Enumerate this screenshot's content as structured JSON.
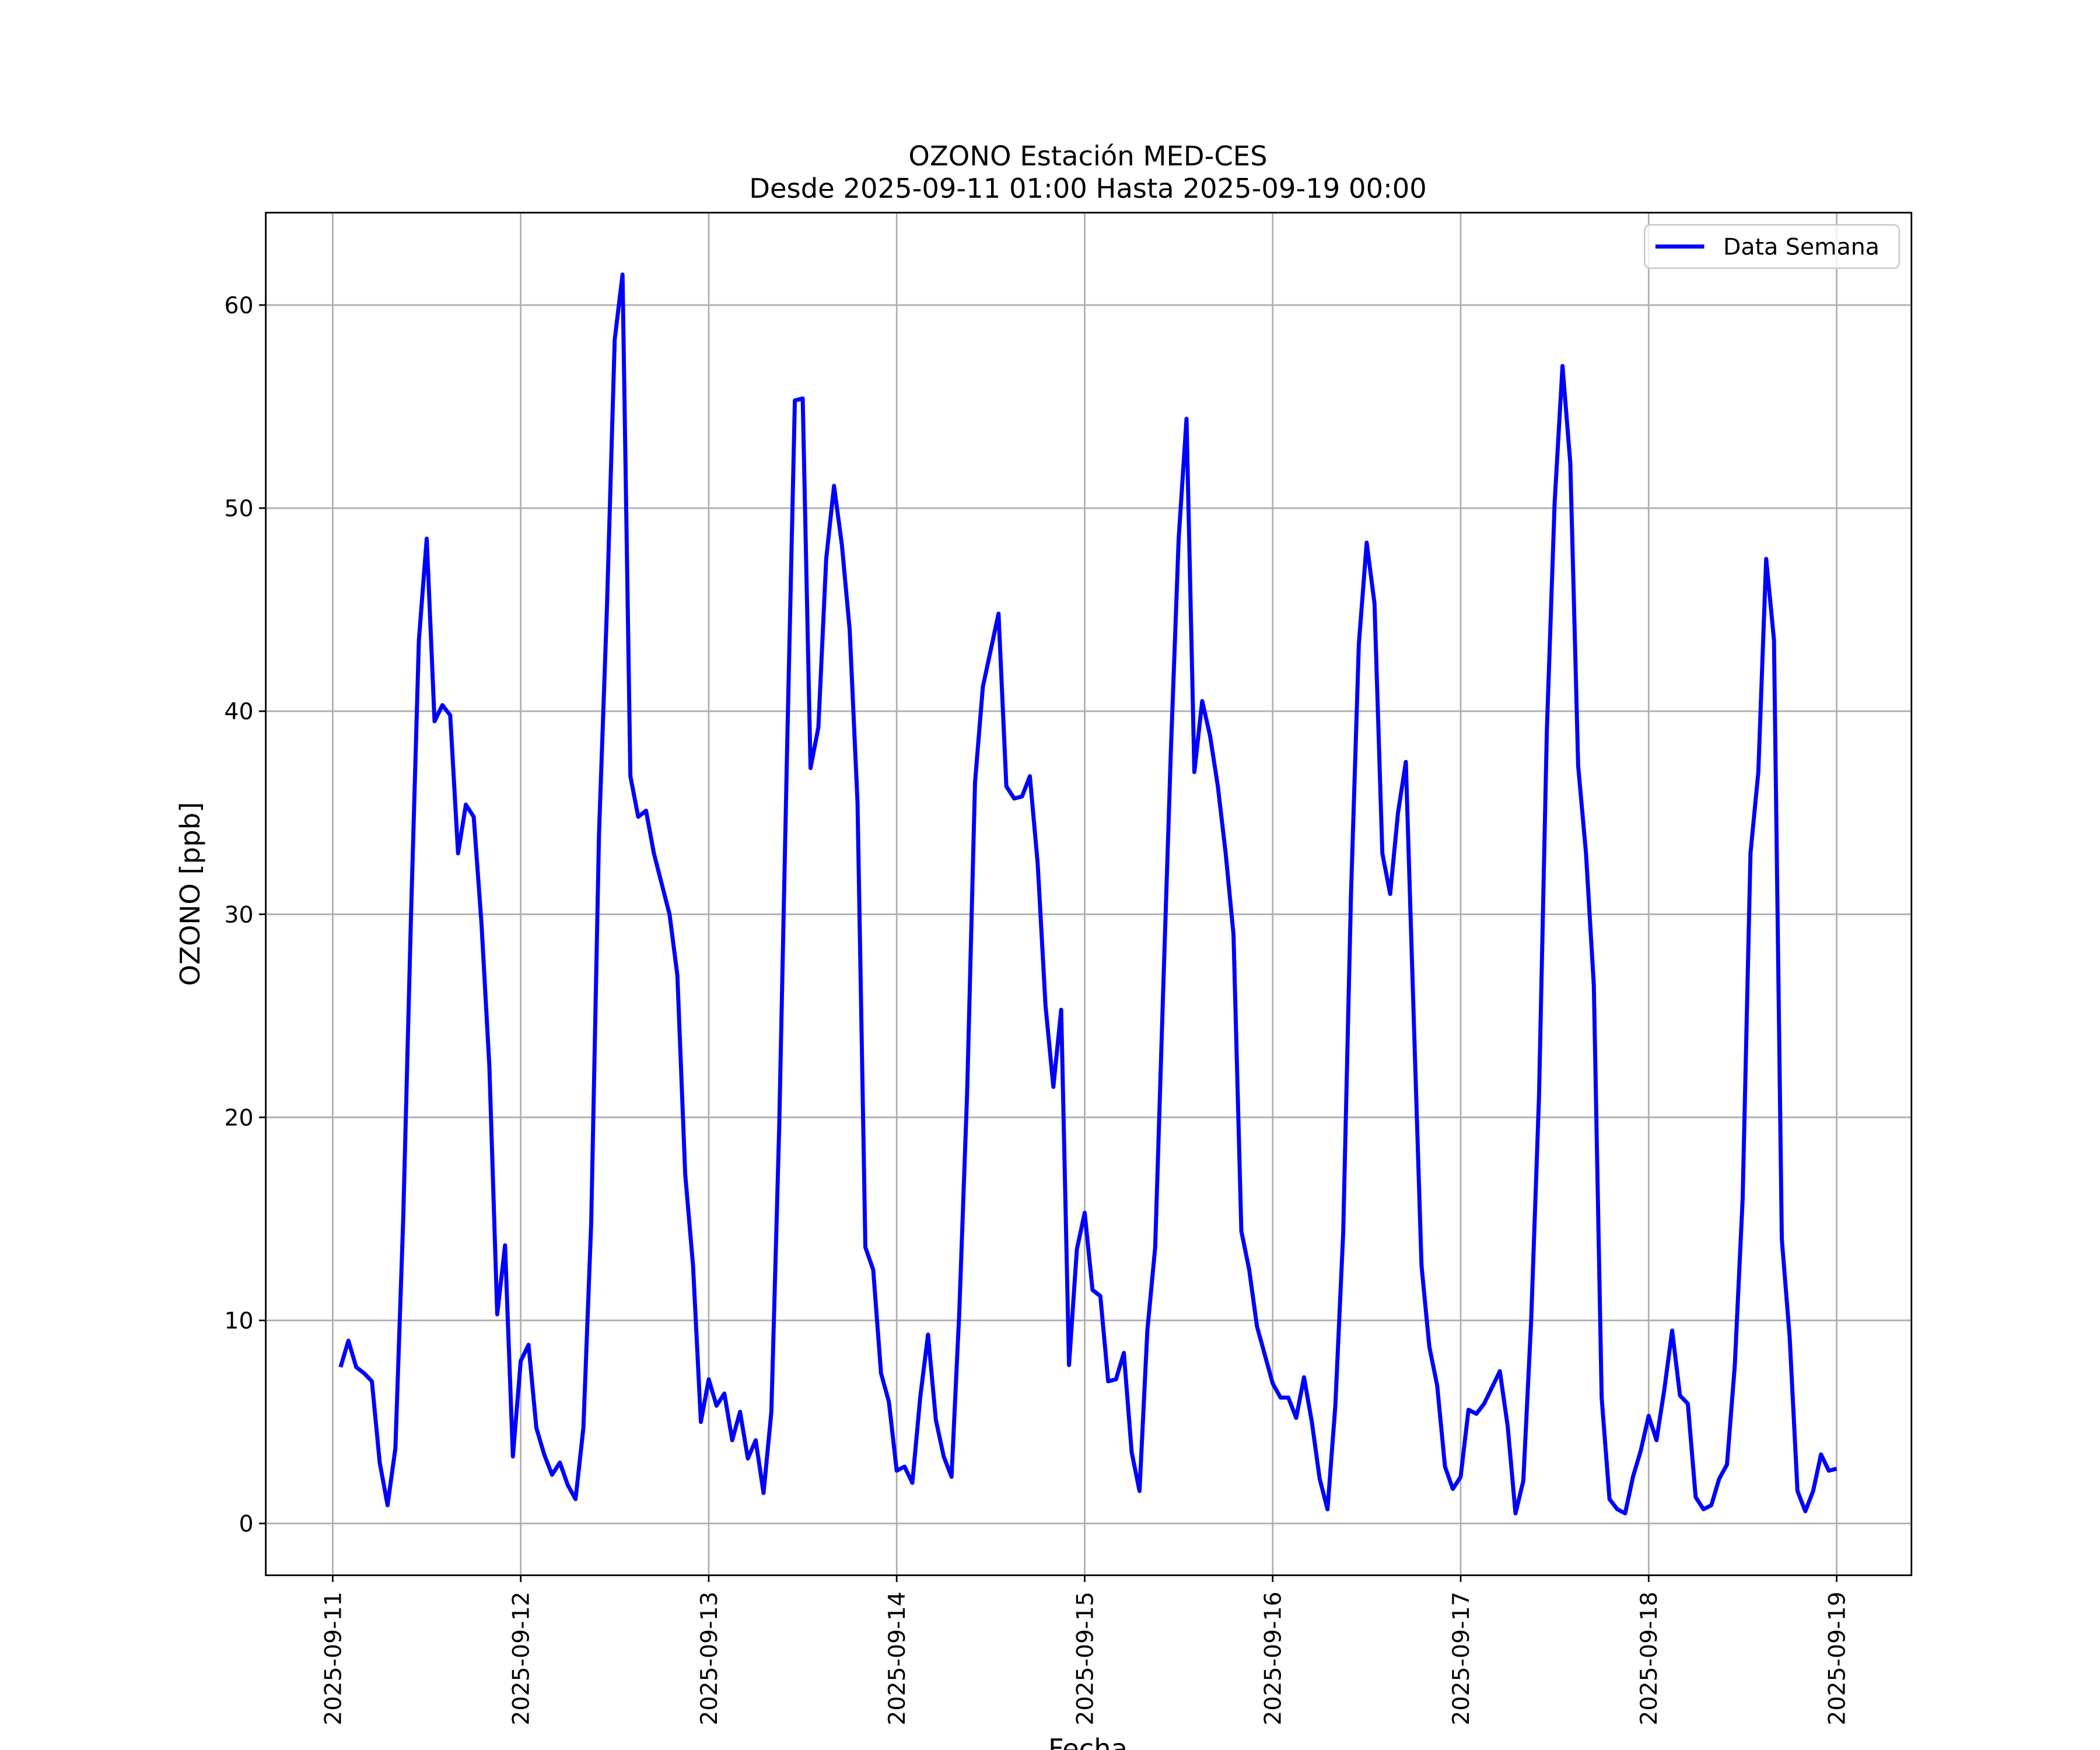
{
  "chart_data": {
    "type": "line",
    "title": "OZONO Estación MED-CES",
    "subtitle": "Desde 2025-09-11 01:00 Hasta 2025-09-19 00:00",
    "xlabel": "Fecha",
    "ylabel": "OZONO [ppb]",
    "x": [
      "2025-09-11 01:00",
      "2025-09-11 02:00",
      "2025-09-11 03:00",
      "2025-09-11 04:00",
      "2025-09-11 05:00",
      "2025-09-11 06:00",
      "2025-09-11 07:00",
      "2025-09-11 08:00",
      "2025-09-11 09:00",
      "2025-09-11 10:00",
      "2025-09-11 11:00",
      "2025-09-11 12:00",
      "2025-09-11 13:00",
      "2025-09-11 14:00",
      "2025-09-11 15:00",
      "2025-09-11 16:00",
      "2025-09-11 17:00",
      "2025-09-11 18:00",
      "2025-09-11 19:00",
      "2025-09-11 20:00",
      "2025-09-11 21:00",
      "2025-09-11 22:00",
      "2025-09-11 23:00",
      "2025-09-12 00:00",
      "2025-09-12 01:00",
      "2025-09-12 02:00",
      "2025-09-12 03:00",
      "2025-09-12 04:00",
      "2025-09-12 05:00",
      "2025-09-12 06:00",
      "2025-09-12 07:00",
      "2025-09-12 08:00",
      "2025-09-12 09:00",
      "2025-09-12 10:00",
      "2025-09-12 11:00",
      "2025-09-12 12:00",
      "2025-09-12 13:00",
      "2025-09-12 14:00",
      "2025-09-12 15:00",
      "2025-09-12 16:00",
      "2025-09-12 17:00",
      "2025-09-12 18:00",
      "2025-09-12 19:00",
      "2025-09-12 20:00",
      "2025-09-12 21:00",
      "2025-09-12 22:00",
      "2025-09-12 23:00",
      "2025-09-13 00:00",
      "2025-09-13 01:00",
      "2025-09-13 02:00",
      "2025-09-13 03:00",
      "2025-09-13 04:00",
      "2025-09-13 05:00",
      "2025-09-13 06:00",
      "2025-09-13 07:00",
      "2025-09-13 08:00",
      "2025-09-13 09:00",
      "2025-09-13 10:00",
      "2025-09-13 11:00",
      "2025-09-13 12:00",
      "2025-09-13 13:00",
      "2025-09-13 14:00",
      "2025-09-13 15:00",
      "2025-09-13 16:00",
      "2025-09-13 17:00",
      "2025-09-13 18:00",
      "2025-09-13 19:00",
      "2025-09-13 20:00",
      "2025-09-13 21:00",
      "2025-09-13 22:00",
      "2025-09-13 23:00",
      "2025-09-14 00:00",
      "2025-09-14 01:00",
      "2025-09-14 02:00",
      "2025-09-14 03:00",
      "2025-09-14 04:00",
      "2025-09-14 05:00",
      "2025-09-14 06:00",
      "2025-09-14 07:00",
      "2025-09-14 08:00",
      "2025-09-14 09:00",
      "2025-09-14 10:00",
      "2025-09-14 11:00",
      "2025-09-14 12:00",
      "2025-09-14 13:00",
      "2025-09-14 14:00",
      "2025-09-14 15:00",
      "2025-09-14 16:00",
      "2025-09-14 17:00",
      "2025-09-14 18:00",
      "2025-09-14 19:00",
      "2025-09-14 20:00",
      "2025-09-14 21:00",
      "2025-09-14 22:00",
      "2025-09-14 23:00",
      "2025-09-15 00:00",
      "2025-09-15 01:00",
      "2025-09-15 02:00",
      "2025-09-15 03:00",
      "2025-09-15 04:00",
      "2025-09-15 05:00",
      "2025-09-15 06:00",
      "2025-09-15 07:00",
      "2025-09-15 08:00",
      "2025-09-15 09:00",
      "2025-09-15 10:00",
      "2025-09-15 11:00",
      "2025-09-15 12:00",
      "2025-09-15 13:00",
      "2025-09-15 14:00",
      "2025-09-15 15:00",
      "2025-09-15 16:00",
      "2025-09-15 17:00",
      "2025-09-15 18:00",
      "2025-09-15 19:00",
      "2025-09-15 20:00",
      "2025-09-15 21:00",
      "2025-09-15 22:00",
      "2025-09-15 23:00",
      "2025-09-16 00:00",
      "2025-09-16 01:00",
      "2025-09-16 02:00",
      "2025-09-16 03:00",
      "2025-09-16 04:00",
      "2025-09-16 05:00",
      "2025-09-16 06:00",
      "2025-09-16 07:00",
      "2025-09-16 08:00",
      "2025-09-16 09:00",
      "2025-09-16 10:00",
      "2025-09-16 11:00",
      "2025-09-16 12:00",
      "2025-09-16 13:00",
      "2025-09-16 14:00",
      "2025-09-16 15:00",
      "2025-09-16 16:00",
      "2025-09-16 17:00",
      "2025-09-16 18:00",
      "2025-09-16 19:00",
      "2025-09-16 20:00",
      "2025-09-16 21:00",
      "2025-09-16 22:00",
      "2025-09-16 23:00",
      "2025-09-17 00:00",
      "2025-09-17 01:00",
      "2025-09-17 02:00",
      "2025-09-17 03:00",
      "2025-09-17 04:00",
      "2025-09-17 05:00",
      "2025-09-17 06:00",
      "2025-09-17 07:00",
      "2025-09-17 08:00",
      "2025-09-17 09:00",
      "2025-09-17 10:00",
      "2025-09-17 11:00",
      "2025-09-17 12:00",
      "2025-09-17 13:00",
      "2025-09-17 14:00",
      "2025-09-17 15:00",
      "2025-09-17 16:00",
      "2025-09-17 17:00",
      "2025-09-17 18:00",
      "2025-09-17 19:00",
      "2025-09-17 20:00",
      "2025-09-17 21:00",
      "2025-09-17 22:00",
      "2025-09-17 23:00",
      "2025-09-18 00:00",
      "2025-09-18 01:00",
      "2025-09-18 02:00",
      "2025-09-18 03:00",
      "2025-09-18 04:00",
      "2025-09-18 05:00",
      "2025-09-18 06:00",
      "2025-09-18 07:00",
      "2025-09-18 08:00",
      "2025-09-18 09:00",
      "2025-09-18 10:00",
      "2025-09-18 11:00",
      "2025-09-18 12:00",
      "2025-09-18 13:00",
      "2025-09-18 14:00",
      "2025-09-18 15:00",
      "2025-09-18 16:00",
      "2025-09-18 17:00",
      "2025-09-18 18:00",
      "2025-09-18 19:00",
      "2025-09-18 20:00",
      "2025-09-18 21:00",
      "2025-09-18 22:00",
      "2025-09-18 23:00",
      "2025-09-19 00:00"
    ],
    "series": [
      {
        "name": "Data Semana",
        "color": "#0000ff",
        "values": [
          7.7,
          9.0,
          7.7,
          7.4,
          7.0,
          3.0,
          0.9,
          3.7,
          15,
          30,
          43.5,
          48.5,
          39.5,
          40.3,
          39.8,
          33,
          35.4,
          34.8,
          29.5,
          22.5,
          10.3,
          13.7,
          3.3,
          8,
          8.8,
          4.7,
          3.4,
          2.4,
          3.0,
          1.9,
          1.2,
          4.7,
          14.8,
          34,
          45,
          58.3,
          61.5,
          36.8,
          34.8,
          35.1,
          33,
          31.5,
          30,
          27,
          17.2,
          12.7,
          5.0,
          7.1,
          5.8,
          6.4,
          4.1,
          5.5,
          3.2,
          4.1,
          1.5,
          5.5,
          19.5,
          38,
          55.3,
          55.4,
          37.2,
          39.2,
          47.5,
          51.1,
          48.2,
          44,
          35.5,
          13.6,
          12.5,
          7.4,
          6.0,
          2.6,
          2.8,
          2.0,
          6.2,
          9.3,
          5.1,
          3.3,
          2.3,
          10.5,
          21.3,
          36.5,
          41.2,
          43,
          44.8,
          36.3,
          35.7,
          35.8,
          36.8,
          32.5,
          25.5,
          21.5,
          25.3,
          7.8,
          13.5,
          15.3,
          11.5,
          11.2,
          7.0,
          7.1,
          8.4,
          3.5,
          1.6,
          9.5,
          13.6,
          26,
          38,
          48.5,
          54.4,
          37,
          40.5,
          38.8,
          36.3,
          33,
          29,
          14.4,
          12.5,
          9.7,
          8.3,
          6.9,
          6.2,
          6.2,
          5.2,
          7.2,
          5.0,
          2.2,
          0.7,
          5.8,
          14.3,
          31,
          43.3,
          48.3,
          45.3,
          33,
          31,
          35,
          37.5,
          25,
          12.7,
          8.7,
          6.8,
          2.8,
          1.7,
          2.3,
          5.6,
          5.4,
          5.9,
          6.7,
          7.5,
          4.8,
          0.5,
          2.1,
          10,
          21,
          39,
          50.3,
          57,
          52.2,
          37.3,
          33,
          26.5,
          6.2,
          1.2,
          0.7,
          0.5,
          2.3,
          3.6,
          5.3,
          4.1,
          6.6,
          9.5,
          6.3,
          5.9,
          1.3,
          0.7,
          0.9,
          2.2,
          2.9,
          7.8,
          16,
          33,
          37,
          47.5,
          43.5,
          14,
          9.2,
          1.6,
          0.6,
          1.6,
          3.4,
          2.6,
          2.7
        ]
      }
    ],
    "xlim": [
      "2025-09-10 15:27",
      "2025-09-19 09:33"
    ],
    "xticks": [
      "2025-09-11",
      "2025-09-12",
      "2025-09-13",
      "2025-09-14",
      "2025-09-15",
      "2025-09-16",
      "2025-09-17",
      "2025-09-18",
      "2025-09-19"
    ],
    "ylim": [
      -2.55,
      64.55
    ],
    "yticks": [
      0,
      10,
      20,
      30,
      40,
      50,
      60
    ],
    "grid": true,
    "legend": "upper right"
  }
}
